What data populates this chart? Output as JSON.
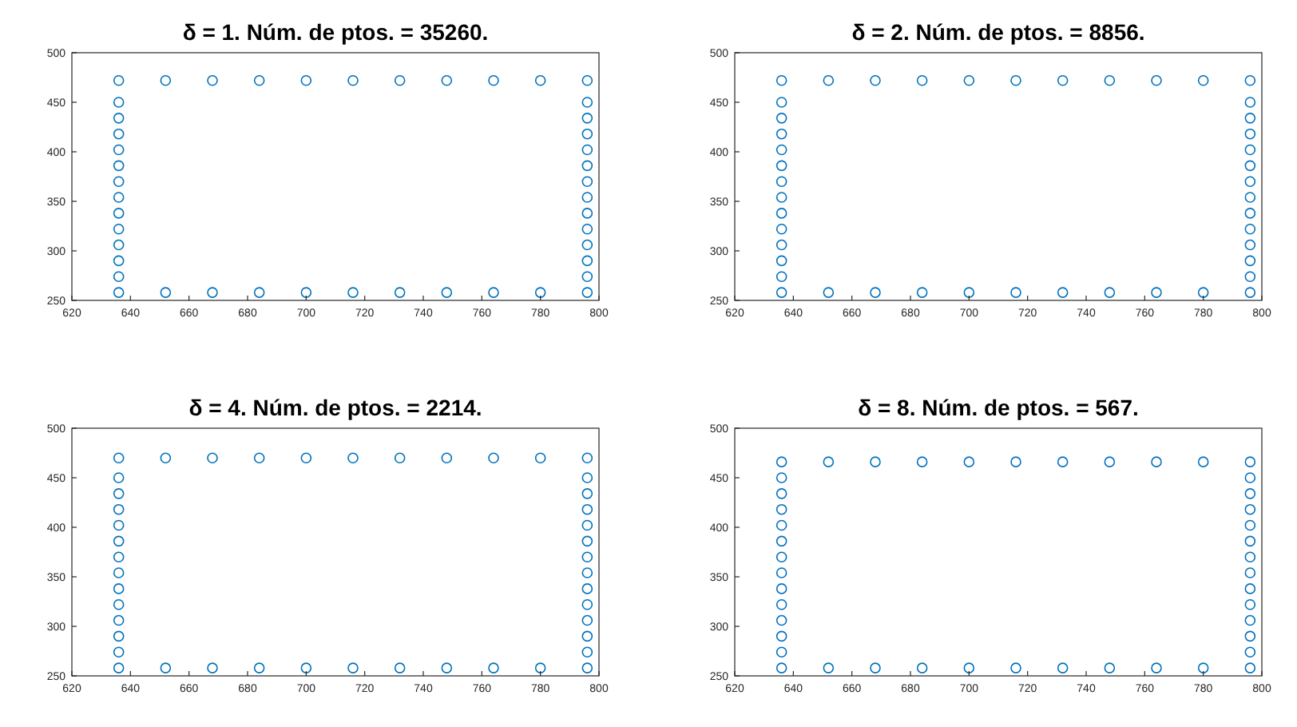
{
  "chart_data": [
    {
      "type": "scatter",
      "title": "δ = 1. Núm. de ptos. = 35260.",
      "marker": "circle",
      "xlim": [
        620,
        800
      ],
      "ylim": [
        250,
        500
      ],
      "xticks": [
        620,
        640,
        660,
        680,
        700,
        720,
        740,
        760,
        780,
        800
      ],
      "yticks": [
        250,
        300,
        350,
        400,
        450,
        500
      ],
      "series": [
        {
          "color": "#0072bd",
          "x": [
            636,
            652,
            668,
            684,
            700,
            716,
            732,
            748,
            764,
            780,
            796,
            636,
            652,
            668,
            684,
            700,
            716,
            732,
            748,
            764,
            780,
            796,
            636,
            636,
            636,
            636,
            636,
            636,
            636,
            636,
            636,
            636,
            636,
            636,
            796,
            796,
            796,
            796,
            796,
            796,
            796,
            796,
            796,
            796,
            796,
            796
          ],
          "values": [
            258,
            258,
            258,
            258,
            258,
            258,
            258,
            258,
            258,
            258,
            258,
            472,
            472,
            472,
            472,
            472,
            472,
            472,
            472,
            472,
            472,
            472,
            274,
            290,
            306,
            322,
            338,
            354,
            370,
            386,
            402,
            418,
            434,
            450,
            274,
            290,
            306,
            322,
            338,
            354,
            370,
            386,
            402,
            418,
            434,
            450
          ]
        }
      ]
    },
    {
      "type": "scatter",
      "title": "δ = 2. Núm. de ptos. = 8856.",
      "marker": "circle",
      "xlim": [
        620,
        800
      ],
      "ylim": [
        250,
        500
      ],
      "xticks": [
        620,
        640,
        660,
        680,
        700,
        720,
        740,
        760,
        780,
        800
      ],
      "yticks": [
        250,
        300,
        350,
        400,
        450,
        500
      ],
      "series": [
        {
          "color": "#0072bd",
          "x": [
            636,
            652,
            668,
            684,
            700,
            716,
            732,
            748,
            764,
            780,
            796,
            636,
            652,
            668,
            684,
            700,
            716,
            732,
            748,
            764,
            780,
            796,
            636,
            636,
            636,
            636,
            636,
            636,
            636,
            636,
            636,
            636,
            636,
            636,
            796,
            796,
            796,
            796,
            796,
            796,
            796,
            796,
            796,
            796,
            796,
            796
          ],
          "values": [
            258,
            258,
            258,
            258,
            258,
            258,
            258,
            258,
            258,
            258,
            258,
            472,
            472,
            472,
            472,
            472,
            472,
            472,
            472,
            472,
            472,
            472,
            274,
            290,
            306,
            322,
            338,
            354,
            370,
            386,
            402,
            418,
            434,
            450,
            274,
            290,
            306,
            322,
            338,
            354,
            370,
            386,
            402,
            418,
            434,
            450
          ]
        }
      ]
    },
    {
      "type": "scatter",
      "title": "δ = 4. Núm. de ptos. = 2214.",
      "marker": "circle",
      "xlim": [
        620,
        800
      ],
      "ylim": [
        250,
        500
      ],
      "xticks": [
        620,
        640,
        660,
        680,
        700,
        720,
        740,
        760,
        780,
        800
      ],
      "yticks": [
        250,
        300,
        350,
        400,
        450,
        500
      ],
      "series": [
        {
          "color": "#0072bd",
          "x": [
            636,
            652,
            668,
            684,
            700,
            716,
            732,
            748,
            764,
            780,
            796,
            636,
            652,
            668,
            684,
            700,
            716,
            732,
            748,
            764,
            780,
            796,
            636,
            636,
            636,
            636,
            636,
            636,
            636,
            636,
            636,
            636,
            636,
            636,
            796,
            796,
            796,
            796,
            796,
            796,
            796,
            796,
            796,
            796,
            796,
            796
          ],
          "values": [
            258,
            258,
            258,
            258,
            258,
            258,
            258,
            258,
            258,
            258,
            258,
            470,
            470,
            470,
            470,
            470,
            470,
            470,
            470,
            470,
            470,
            470,
            274,
            290,
            306,
            322,
            338,
            354,
            370,
            386,
            402,
            418,
            434,
            450,
            274,
            290,
            306,
            322,
            338,
            354,
            370,
            386,
            402,
            418,
            434,
            450
          ]
        }
      ]
    },
    {
      "type": "scatter",
      "title": "δ = 8. Núm. de ptos. = 567.",
      "marker": "circle",
      "xlim": [
        620,
        800
      ],
      "ylim": [
        250,
        500
      ],
      "xticks": [
        620,
        640,
        660,
        680,
        700,
        720,
        740,
        760,
        780,
        800
      ],
      "yticks": [
        250,
        300,
        350,
        400,
        450,
        500
      ],
      "series": [
        {
          "color": "#0072bd",
          "x": [
            636,
            652,
            668,
            684,
            700,
            716,
            732,
            748,
            764,
            780,
            796,
            636,
            652,
            668,
            684,
            700,
            716,
            732,
            748,
            764,
            780,
            796,
            636,
            636,
            636,
            636,
            636,
            636,
            636,
            636,
            636,
            636,
            636,
            636,
            796,
            796,
            796,
            796,
            796,
            796,
            796,
            796,
            796,
            796,
            796,
            796
          ],
          "values": [
            258,
            258,
            258,
            258,
            258,
            258,
            258,
            258,
            258,
            258,
            258,
            466,
            466,
            466,
            466,
            466,
            466,
            466,
            466,
            466,
            466,
            466,
            274,
            290,
            306,
            322,
            338,
            354,
            370,
            386,
            402,
            418,
            434,
            450,
            274,
            290,
            306,
            322,
            338,
            354,
            370,
            386,
            402,
            418,
            434,
            450
          ]
        }
      ]
    }
  ]
}
